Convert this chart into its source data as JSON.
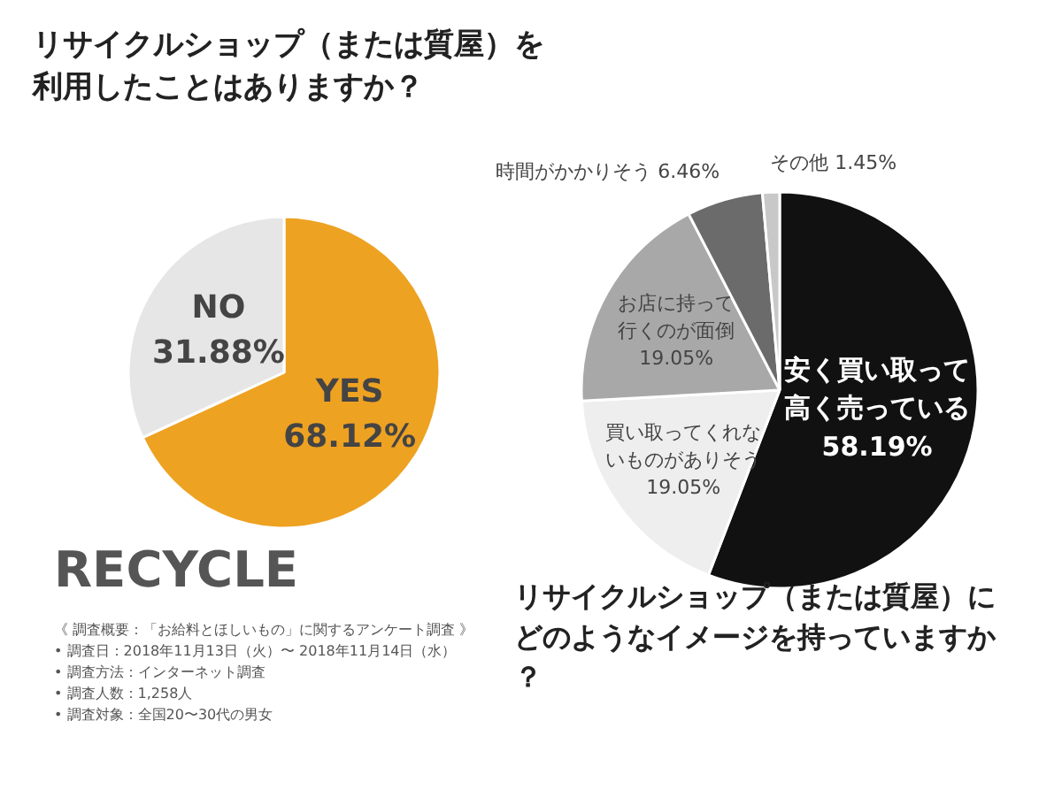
{
  "chart_data": [
    {
      "type": "pie",
      "title": "リサイクルショップ（または質屋）を利用したことはありますか？",
      "categories": [
        "YES",
        "NO"
      ],
      "values": [
        68.12,
        31.88
      ],
      "colors": [
        "#eea222",
        "#e6e6e6"
      ],
      "value_labels": [
        "68.12%",
        "31.88%"
      ],
      "annotations": [
        "RECYCLE",
        "《 調査概要：「お給料とほしいもの」に関するアンケート調査 》",
        "• 調査日：2018年11月13日（火）〜 2018年11月14日（水）",
        "• 調査方法：インターネット調査",
        "• 調査人数：1,258人",
        "• 調査対象：全国20〜30代の男女"
      ]
    },
    {
      "type": "pie",
      "title": "リサイクルショップ（または質屋）にどのようなイメージを持っていますか？",
      "categories": [
        "安く買い取って高く売っている",
        "買い取ってくれないものがありそう",
        "お店に持って行くのが面倒",
        "時間がかかりそう",
        "その他"
      ],
      "values": [
        58.19,
        19.05,
        19.05,
        6.46,
        1.45
      ],
      "colors": [
        "#111111",
        "#eeeeee",
        "#a8a8a8",
        "#6b6b6b",
        "#c8c8c8"
      ],
      "value_labels": [
        "58.19%",
        "19.05%",
        "19.05%",
        "6.46%",
        "1.45%"
      ]
    }
  ]
}
